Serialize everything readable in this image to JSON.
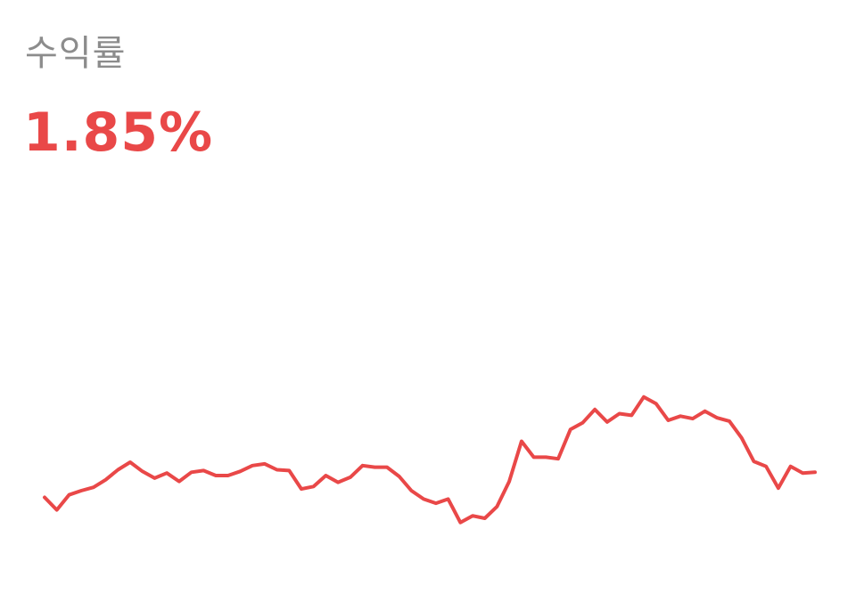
{
  "header": {
    "label": "수익률",
    "value": "1.85%"
  },
  "colors": {
    "accent": "#e94848",
    "label": "#8c8c8c"
  },
  "chart_data": {
    "type": "line",
    "title": "",
    "xlabel": "",
    "ylabel": "",
    "grid": false,
    "legend": "none",
    "ylim": [
      -1.5,
      3.5
    ],
    "series": [
      {
        "color": "#e94848",
        "values": [
          -0.42,
          -0.57,
          -0.39,
          -0.34,
          -0.3,
          -0.21,
          -0.09,
          0.0,
          -0.11,
          -0.19,
          -0.13,
          -0.23,
          -0.12,
          -0.1,
          -0.16,
          -0.16,
          -0.11,
          -0.04,
          -0.02,
          -0.09,
          -0.1,
          -0.32,
          -0.29,
          -0.16,
          -0.24,
          -0.18,
          -0.04,
          -0.06,
          -0.06,
          -0.17,
          -0.34,
          -0.44,
          -0.49,
          -0.44,
          -0.72,
          -0.64,
          -0.67,
          -0.53,
          -0.23,
          0.25,
          0.06,
          0.06,
          0.04,
          0.39,
          0.47,
          0.63,
          0.48,
          0.58,
          0.56,
          0.78,
          0.7,
          0.5,
          0.55,
          0.52,
          0.61,
          0.53,
          0.49,
          0.29,
          0.01,
          -0.05,
          -0.31,
          -0.05,
          -0.13,
          -0.12
        ]
      }
    ]
  }
}
